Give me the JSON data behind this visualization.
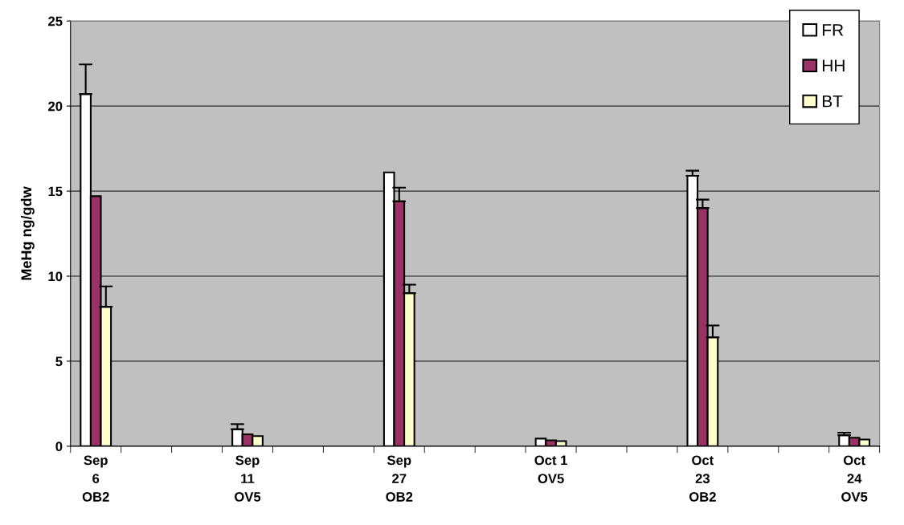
{
  "chart_data": {
    "type": "bar",
    "ylabel": "MeHg ng/gdw",
    "categories": [
      "Sep\n6\nOB2",
      null,
      null,
      "Sep\n11\nOV5",
      null,
      null,
      "Sep\n27\nOB2",
      null,
      null,
      "Oct 1\nOV5",
      null,
      null,
      "Oct\n23\nOB2",
      null,
      null,
      "Oct\n24\nOV5"
    ],
    "series": [
      {
        "name": "FR",
        "color": "#ffffff",
        "values": [
          20.7,
          null,
          null,
          1.0,
          null,
          null,
          16.1,
          null,
          null,
          0.45,
          null,
          null,
          15.9,
          null,
          null,
          0.65
        ],
        "errors": [
          [
            20.7,
            22.45
          ],
          null,
          null,
          [
            1.0,
            1.3
          ],
          null,
          null,
          null,
          null,
          null,
          null,
          null,
          null,
          [
            15.9,
            16.2
          ],
          null,
          null,
          [
            0.65,
            0.8
          ]
        ]
      },
      {
        "name": "HH",
        "color": "#993366",
        "values": [
          14.7,
          null,
          null,
          0.7,
          null,
          null,
          14.4,
          null,
          null,
          0.35,
          null,
          null,
          14.0,
          null,
          null,
          0.5
        ],
        "errors": [
          null,
          null,
          null,
          null,
          null,
          null,
          [
            14.4,
            15.2
          ],
          null,
          null,
          null,
          null,
          null,
          [
            14.0,
            14.5
          ],
          null,
          null,
          null
        ]
      },
      {
        "name": "BT",
        "color": "#ffffcc",
        "values": [
          8.2,
          null,
          null,
          0.6,
          null,
          null,
          9.0,
          null,
          null,
          0.3,
          null,
          null,
          6.4,
          null,
          null,
          0.4
        ],
        "errors": [
          [
            8.2,
            9.4
          ],
          null,
          null,
          null,
          null,
          null,
          [
            9.0,
            9.5
          ],
          null,
          null,
          null,
          null,
          null,
          [
            6.4,
            7.1
          ],
          null,
          null,
          null
        ]
      }
    ],
    "ylim": [
      0,
      25
    ],
    "yticks": [
      0,
      5,
      10,
      15,
      20,
      25
    ],
    "grid": "y",
    "legend": "top right"
  }
}
